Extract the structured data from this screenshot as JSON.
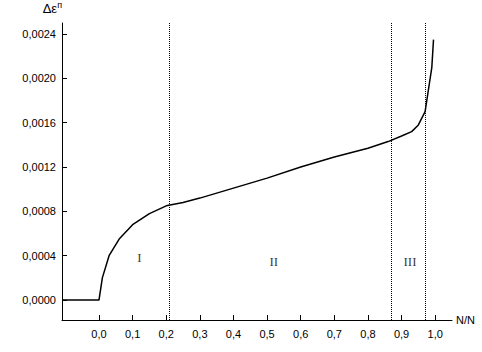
{
  "chart_data": {
    "type": "line",
    "xlabel": "N/N",
    "ylabel": "Δε",
    "ylabel_superscript": "п",
    "color": "#000000",
    "line_style": "solid",
    "marker": "none",
    "grid": false,
    "x": [
      -0.11,
      0.0,
      0.01,
      0.03,
      0.06,
      0.1,
      0.15,
      0.2,
      0.25,
      0.3,
      0.4,
      0.5,
      0.6,
      0.7,
      0.8,
      0.86,
      0.9,
      0.93,
      0.95,
      0.97,
      0.98,
      0.99,
      0.995
    ],
    "values": [
      0.0,
      0.0,
      0.0002,
      0.0004,
      0.00055,
      0.00068,
      0.00078,
      0.00085,
      0.00088,
      0.00092,
      0.00101,
      0.0011,
      0.0012,
      0.00129,
      0.00137,
      0.00143,
      0.00148,
      0.00152,
      0.00158,
      0.0017,
      0.0019,
      0.0021,
      0.00235
    ],
    "xlim": [
      -0.11,
      1.05
    ],
    "xticks": [
      {
        "value": 0.0,
        "label": "0,0"
      },
      {
        "value": 0.1,
        "label": "0,1"
      },
      {
        "value": 0.2,
        "label": "0,2"
      },
      {
        "value": 0.3,
        "label": "0,3"
      },
      {
        "value": 0.4,
        "label": "0,4"
      },
      {
        "value": 0.5,
        "label": "0,5"
      },
      {
        "value": 0.6,
        "label": "0,6"
      },
      {
        "value": 0.7,
        "label": "0,7"
      },
      {
        "value": 0.8,
        "label": "0,8"
      },
      {
        "value": 0.9,
        "label": "0,9"
      },
      {
        "value": 1.0,
        "label": "1,0"
      }
    ],
    "ylim": [
      -0.00018,
      0.0025
    ],
    "yticks": [
      {
        "value": 0.0,
        "label": "0,0000"
      },
      {
        "value": 0.0004,
        "label": "0,0004"
      },
      {
        "value": 0.0008,
        "label": "0,0008"
      },
      {
        "value": 0.0012,
        "label": "0,0012"
      },
      {
        "value": 0.0016,
        "label": "0,0016"
      },
      {
        "value": 0.002,
        "label": "0,0020"
      },
      {
        "value": 0.0024,
        "label": "0,0024"
      }
    ],
    "boundaries": [
      0.21,
      0.87,
      0.97
    ],
    "zones": [
      {
        "label": "I",
        "x": 0.12,
        "y": 0.00038
      },
      {
        "label": "II",
        "x": 0.52,
        "y": 0.00035
      },
      {
        "label": "III",
        "x": 0.925,
        "y": 0.00035
      }
    ]
  }
}
